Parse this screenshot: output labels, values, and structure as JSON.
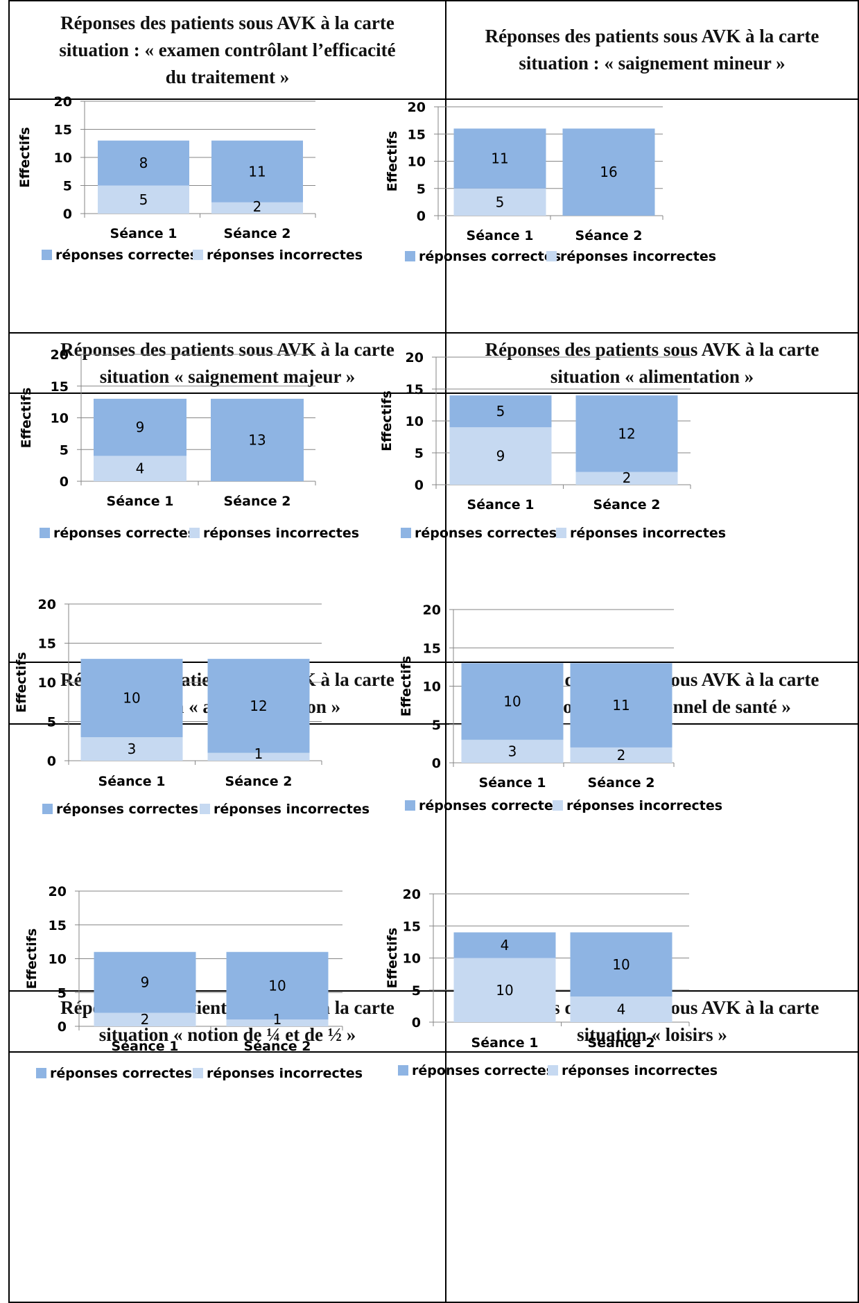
{
  "colors": {
    "correct": "#8EB4E3",
    "incorrect": "#C6D9F1",
    "grid": "#868686",
    "axis": "#868686",
    "text": "#000000"
  },
  "legend_labels": {
    "correct": "réponses correctes",
    "incorrect": "réponses incorrectes"
  },
  "chart_data": [
    {
      "type": "bar",
      "stacked": true,
      "title": "Réponses des patients sous AVK à la carte situation : « examen contrôlant l’efficacité du traitement »",
      "title_lines": [
        "Réponses des patients sous AVK à la carte",
        "situation : « examen contrôlant l’efficacité",
        "du traitement »"
      ],
      "categories": [
        "Séance 1",
        "Séance 2"
      ],
      "series": [
        {
          "name": "réponses incorrectes",
          "values": [
            5,
            2
          ]
        },
        {
          "name": "réponses correctes",
          "values": [
            8,
            11
          ]
        }
      ],
      "ylabel": "Effectifs",
      "xlabel": "",
      "ylim": [
        0,
        20
      ],
      "yticks": [
        0,
        5,
        10,
        15,
        20
      ],
      "grid": true,
      "legend": "bottom"
    },
    {
      "type": "bar",
      "stacked": true,
      "title": "Réponses des patients sous AVK à la carte situation : « saignement mineur »",
      "title_lines": [
        "Réponses des patients sous AVK à la carte",
        "situation : « saignement mineur »"
      ],
      "categories": [
        "Séance 1",
        "Séance 2"
      ],
      "series": [
        {
          "name": "réponses incorrectes",
          "values": [
            5,
            0
          ]
        },
        {
          "name": "réponses correctes",
          "values": [
            11,
            16
          ]
        }
      ],
      "ylabel": "Effectifs",
      "xlabel": "",
      "ylim": [
        0,
        20
      ],
      "yticks": [
        0,
        5,
        10,
        15,
        20
      ],
      "grid": true,
      "legend": "bottom"
    },
    {
      "type": "bar",
      "stacked": true,
      "title": "Réponses des patients sous AVK à la carte situation « saignement majeur »",
      "title_lines": [
        "Réponses des patients sous AVK à la carte",
        "situation « saignement majeur »"
      ],
      "categories": [
        "Séance 1",
        "Séance 2"
      ],
      "series": [
        {
          "name": "réponses incorrectes",
          "values": [
            4,
            0
          ]
        },
        {
          "name": "réponses correctes",
          "values": [
            9,
            13
          ]
        }
      ],
      "ylabel": "Effectifs",
      "xlabel": "",
      "ylim": [
        0,
        20
      ],
      "yticks": [
        0,
        5,
        10,
        15,
        20
      ],
      "grid": true,
      "legend": "bottom"
    },
    {
      "type": "bar",
      "stacked": true,
      "title": "Réponses des patients sous AVK à la carte situation « alimentation »",
      "title_lines": [
        "Réponses des patients sous AVK à la carte",
        "situation « alimentation »"
      ],
      "categories": [
        "Séance 1",
        "Séance 2"
      ],
      "series": [
        {
          "name": "réponses incorrectes",
          "values": [
            9,
            2
          ]
        },
        {
          "name": "réponses correctes",
          "values": [
            5,
            12
          ]
        }
      ],
      "ylabel": "Effectifs",
      "xlabel": "",
      "ylim": [
        0,
        20
      ],
      "yticks": [
        0,
        5,
        10,
        15,
        20
      ],
      "grid": true,
      "legend": "bottom"
    },
    {
      "type": "bar",
      "stacked": true,
      "title": "Réponses des patients sous AVK à la carte situation « automédication »",
      "title_lines": [
        "Réponses des patients sous AVK à la carte",
        "situation « automédication »"
      ],
      "categories": [
        "Séance 1",
        "Séance 2"
      ],
      "series": [
        {
          "name": "réponses incorrectes",
          "values": [
            3,
            1
          ]
        },
        {
          "name": "réponses correctes",
          "values": [
            10,
            12
          ]
        }
      ],
      "ylabel": "Effectifs",
      "xlabel": "",
      "ylim": [
        0,
        20
      ],
      "yticks": [
        0,
        5,
        10,
        15,
        20
      ],
      "grid": true,
      "legend": "bottom"
    },
    {
      "type": "bar",
      "stacked": true,
      "title": "Réponses des patients sous AVK à la carte situation « professionnel de santé »",
      "title_lines": [
        "Réponses des patients sous AVK à la carte",
        "situation « professionnel de santé »"
      ],
      "categories": [
        "Séance 1",
        "Séance 2"
      ],
      "series": [
        {
          "name": "réponses incorrectes",
          "values": [
            3,
            2
          ]
        },
        {
          "name": "réponses correctes",
          "values": [
            10,
            11
          ]
        }
      ],
      "ylabel": "Effectifs",
      "xlabel": "",
      "ylim": [
        0,
        20
      ],
      "yticks": [
        0,
        5,
        10,
        15,
        20
      ],
      "grid": true,
      "legend": "bottom"
    },
    {
      "type": "bar",
      "stacked": true,
      "title": "Réponses des patients sous AVK à la carte situation « notion de ¼ et de ½ »",
      "title_lines": [
        "Réponses des patients sous AVK à la carte",
        "situation « notion de ¼ et de ½ »"
      ],
      "categories": [
        "Séance 1",
        "Séance 2"
      ],
      "series": [
        {
          "name": "réponses incorrectes",
          "values": [
            2,
            1
          ]
        },
        {
          "name": "réponses correctes",
          "values": [
            9,
            10
          ]
        }
      ],
      "ylabel": "Effectifs",
      "xlabel": "",
      "ylim": [
        0,
        20
      ],
      "yticks": [
        0,
        5,
        10,
        15,
        20
      ],
      "grid": true,
      "legend": "bottom"
    },
    {
      "type": "bar",
      "stacked": true,
      "title": "Réponses des patients sous AVK à la carte situation « loisirs »",
      "title_lines": [
        "Réponses des patients sous AVK à la carte",
        "situation « loisirs »"
      ],
      "categories": [
        "Séance 1",
        "Séance 2"
      ],
      "series": [
        {
          "name": "réponses incorrectes",
          "values": [
            10,
            4
          ]
        },
        {
          "name": "réponses correctes",
          "values": [
            4,
            10
          ]
        }
      ],
      "ylabel": "Effectifs",
      "xlabel": "",
      "ylim": [
        0,
        20
      ],
      "yticks": [
        0,
        5,
        10,
        15,
        20
      ],
      "grid": true,
      "legend": "bottom"
    }
  ]
}
